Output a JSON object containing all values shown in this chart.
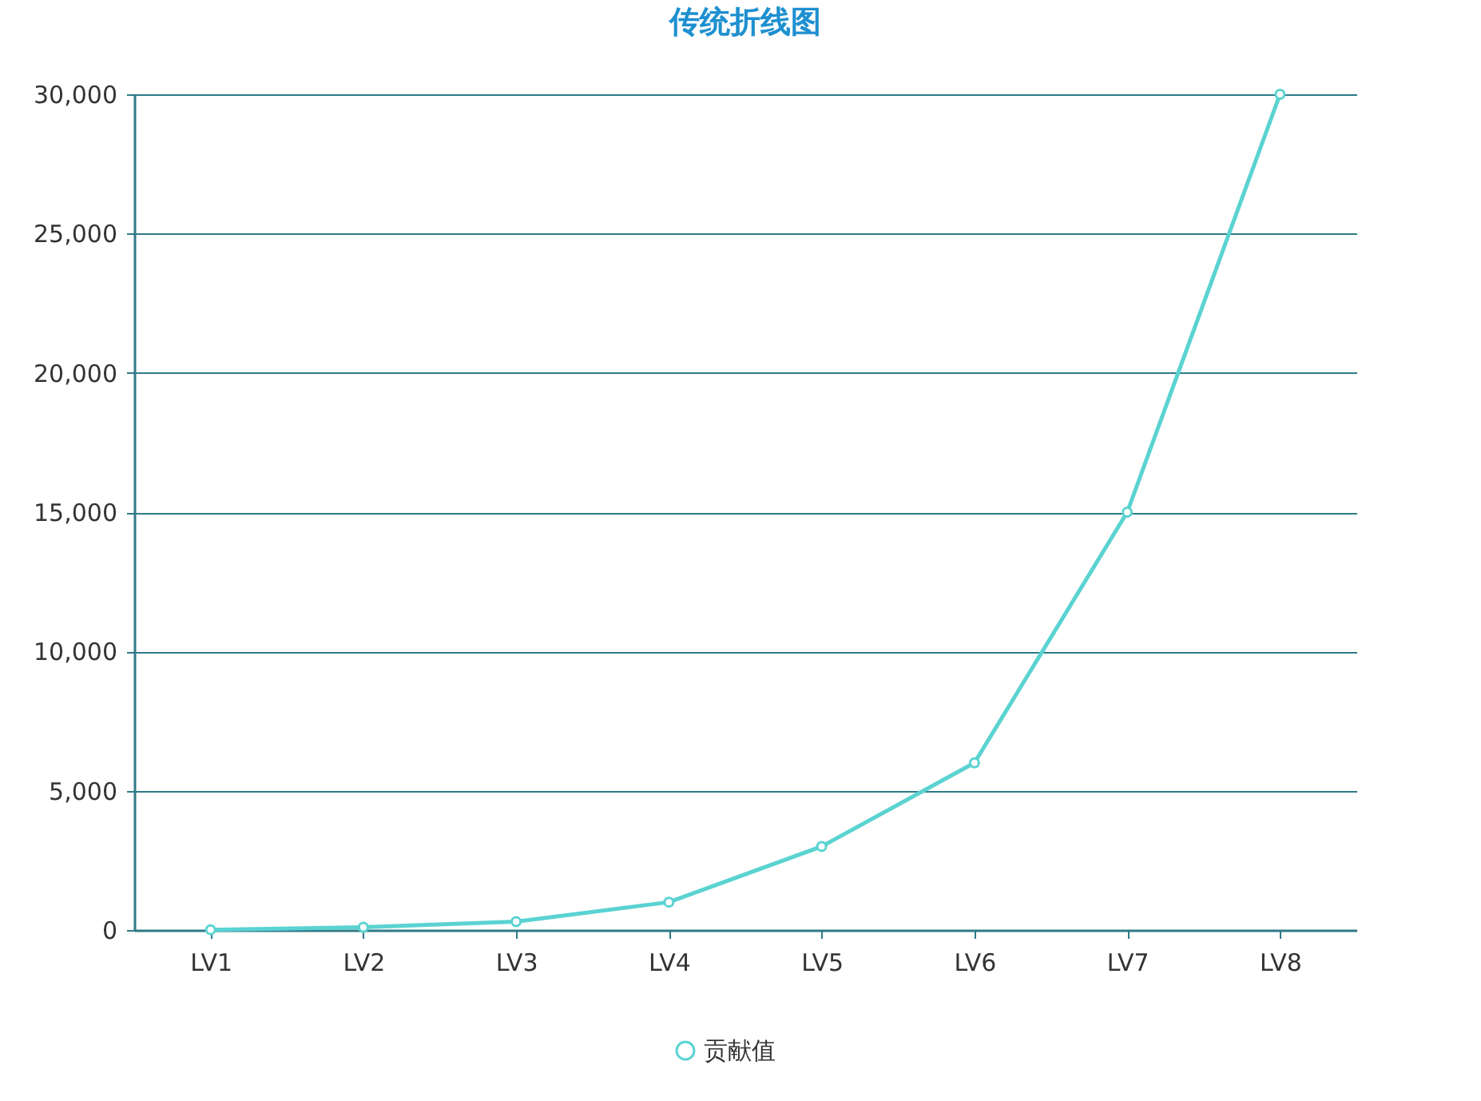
{
  "chart_data": {
    "type": "line",
    "title": "传统折线图",
    "categories": [
      "LV1",
      "LV2",
      "LV3",
      "LV4",
      "LV5",
      "LV6",
      "LV7",
      "LV8"
    ],
    "series": [
      {
        "name": "贡献值",
        "color": "#5ad3d1",
        "values": [
          10,
          100,
          300,
          1000,
          3000,
          6000,
          15000,
          30000
        ]
      }
    ],
    "ylim": [
      0,
      30000
    ],
    "yticks": [
      0,
      {
        "value": 5000,
        "label": "5,000"
      },
      {
        "value": 10000,
        "label": "10,000"
      },
      {
        "value": 15000,
        "label": "15,000"
      },
      {
        "value": 20000,
        "label": "20,000"
      },
      {
        "value": 25000,
        "label": "25,000"
      },
      {
        "value": 30000,
        "label": "30,000"
      }
    ],
    "grid": "y",
    "legend": "bottom",
    "marker": "circle",
    "line_style": "solid"
  }
}
